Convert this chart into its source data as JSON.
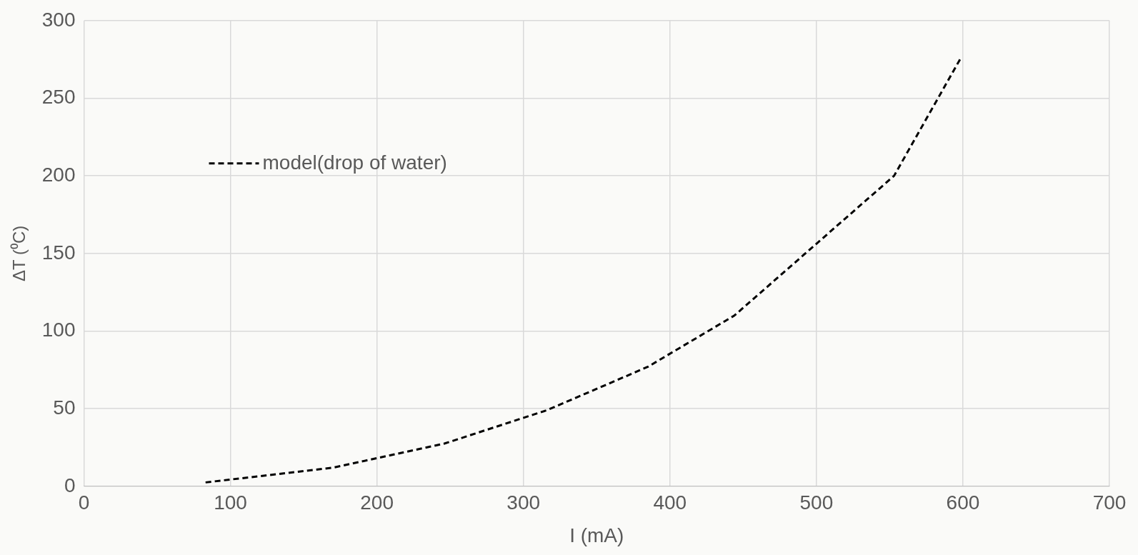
{
  "chart_data": {
    "type": "line",
    "xlabel": "I (mA)",
    "ylabel": "ΔT (⁰C)",
    "x": [
      83,
      170,
      246,
      316,
      385,
      444,
      553,
      598
    ],
    "series": [
      {
        "name": "model(drop of water)",
        "color": "#000000",
        "values": [
          2.5,
          12,
          27.5,
          49,
          77,
          110,
          200,
          275
        ]
      }
    ],
    "xlim": [
      0,
      700
    ],
    "xticks": [
      0,
      100,
      200,
      300,
      400,
      500,
      600,
      700
    ],
    "ylim": [
      0,
      300
    ],
    "yticks": [
      0,
      50,
      100,
      150,
      200,
      250,
      300
    ],
    "grid": true,
    "legend": "top left",
    "marker": "none",
    "line_style": "dashed"
  }
}
